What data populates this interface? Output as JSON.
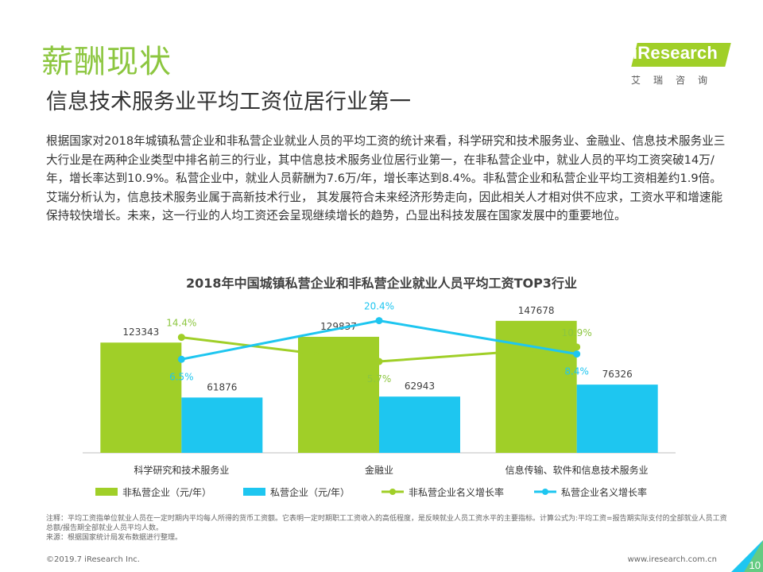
{
  "header": {
    "section_title": "薪酬现状",
    "subtitle": "信息技术服务业平均工资位居行业第一",
    "logo_text": "iResearch",
    "logo_sub": "艾瑞咨询"
  },
  "body_text": "根据国家对2018年城镇私营企业和非私营企业就业人员的平均工资的统计来看，科学研究和技术服务业、金融业、信息技术服务业三大行业是在两种企业类型中排名前三的行业，其中信息技术服务业位居行业第一，在非私营企业中，就业人员的平均工资突破14万/年，增长率达到10.9%。私营企业中，就业人员薪酬为7.6万/年，增长率达到8.4%。非私营企业和私营企业平均工资相差约1.9倍。艾瑞分析认为，信息技术服务业属于高新技术行业， 其发展符合未来经济形势走向，因此相关人才相对供不应求，工资水平和增速能保持较快增长。未来，这一行业的人均工资还会呈现继续增长的趋势，凸显出科技发展在国家发展中的重要地位。",
  "chart_data": {
    "type": "bar",
    "title": "2018年中国城镇私营企业和非私营企业就业人员平均工资TOP3行业",
    "categories": [
      "科学研究和技术服务业",
      "金融业",
      "信息传输、软件和信息技术服务业"
    ],
    "series": [
      {
        "name": "非私营企业（元/年）",
        "type": "bar",
        "values": [
          123343,
          129837,
          147678
        ],
        "color": "#a0cf28"
      },
      {
        "name": "私营企业（元/年）",
        "type": "bar",
        "values": [
          61876,
          62943,
          76326
        ],
        "color": "#1ec6f0"
      },
      {
        "name": "非私营企业名义增长率",
        "type": "line",
        "values": [
          14.4,
          5.7,
          10.9
        ],
        "labels": [
          "14.4%",
          "5.7%",
          "10.9%"
        ],
        "color": "#a0cf28"
      },
      {
        "name": "私营企业名义增长率",
        "type": "line",
        "values": [
          6.5,
          20.4,
          8.4
        ],
        "labels": [
          "6.5%",
          "20.4%",
          "8.4%"
        ],
        "color": "#1ec6f0"
      }
    ],
    "legend_position": "bottom",
    "grid": false
  },
  "notes": {
    "note": "注释：平均工资指单位就业人员在一定时期内平均每人所得的货币工资额。它表明一定时期职工工资收入的高低程度，是反映就业人员工资水平的主要指标。计算公式为:平均工资=报告期实际支付的全部就业人员工资总额/报告期全部就业人员平均人数。",
    "source": "来源：根据国家统计局发布数据进行整理。"
  },
  "footer": {
    "copyright": "©2019.7 iResearch Inc.",
    "website": "www.iresearch.com.cn",
    "page_number": "10"
  }
}
